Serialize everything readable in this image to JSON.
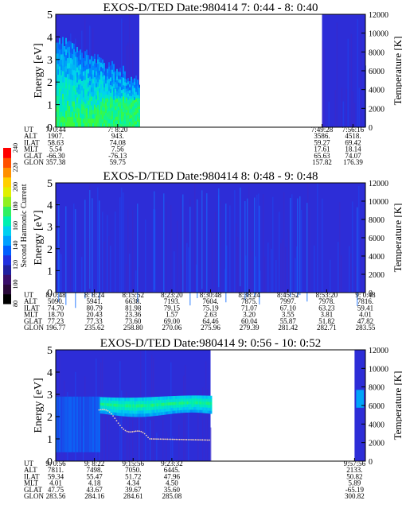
{
  "colorbar": {
    "label": "Second Harmonic Current",
    "ticks": [
      "80",
      "100",
      "120",
      "140",
      "160",
      "180",
      "200",
      "220",
      "240"
    ]
  },
  "chart_data": [
    {
      "type": "heatmap",
      "title": "EXOS-D/TED   Date:980414  7: 0:44 - 8: 0:40",
      "ylabel": "Energy [eV]",
      "y2label": "Temperature [K]",
      "ylim": [
        0,
        5
      ],
      "y2lim": [
        0,
        12000
      ],
      "yticks": [
        "0",
        "1",
        "2",
        "3",
        "4",
        "5"
      ],
      "y2ticks": [
        "0",
        "2000",
        "4000",
        "6000",
        "8000",
        "10000",
        "12000"
      ],
      "coverage": [
        [
          0.0,
          0.27
        ],
        [
          0.86,
          1.0
        ]
      ],
      "temperature_trace": false,
      "table": {
        "row_labels": [
          "UT",
          "ALT",
          "ILAT",
          "MLT",
          "GLAT",
          "GLON"
        ],
        "columns": [
          {
            "pos": 0.0,
            "values": [
              "7: 0:44",
              "1907.",
              "58.63",
              "5.54",
              "-66.30",
              "357.38"
            ]
          },
          {
            "pos": 0.2,
            "values": [
              "7: 8:20",
              "943.",
              "74.08",
              "7.56",
              "-76.13",
              "59.75"
            ]
          },
          {
            "pos": 0.86,
            "values": [
              "7:49:28",
              "3586.",
              "59.27",
              "17.61",
              "65.63",
              "157.82"
            ]
          },
          {
            "pos": 0.96,
            "values": [
              "7:56:16",
              "4518.",
              "69.42",
              "18.14",
              "74.07",
              "176.39"
            ]
          }
        ]
      }
    },
    {
      "type": "heatmap",
      "title": "EXOS-D/TED   Date:980414  8: 0:48 - 9: 0:48",
      "ylabel": "Energy [eV]",
      "y2label": "Temperature [K]",
      "ylim": [
        0,
        5
      ],
      "y2lim": [
        0,
        12000
      ],
      "yticks": [
        "0",
        "1",
        "2",
        "3",
        "4",
        "5"
      ],
      "y2ticks": [
        "0",
        "2000",
        "4000",
        "6000",
        "8000",
        "10000",
        "12000"
      ],
      "coverage": [
        [
          0.0,
          1.0
        ]
      ],
      "temperature_trace": false,
      "table": {
        "row_labels": [
          "UT",
          "ALT",
          "ILAT",
          "MLT",
          "GLAT",
          "GLON"
        ],
        "columns": [
          {
            "pos": 0.0,
            "values": [
              "8: 0:48",
              "5090.",
              "74.70",
              "18.70",
              "77.23",
              "196.77"
            ]
          },
          {
            "pos": 0.125,
            "values": [
              "8: 8:24",
              "5941.",
              "80.79",
              "20.43",
              "77.33",
              "235.62"
            ]
          },
          {
            "pos": 0.25,
            "values": [
              "8:15:52",
              "6638.",
              "81.98",
              "23.36",
              "73.60",
              "258.80"
            ]
          },
          {
            "pos": 0.375,
            "values": [
              "8:23:20",
              "7193.",
              "79.15",
              "1.57",
              "69.00",
              "270.06"
            ]
          },
          {
            "pos": 0.5,
            "values": [
              "8:30:48",
              "7604.",
              "75.19",
              "2.63",
              "64.46",
              "275.96"
            ]
          },
          {
            "pos": 0.625,
            "values": [
              "8:38:24",
              "7875.",
              "71.07",
              "3.20",
              "60.04",
              "279.39"
            ]
          },
          {
            "pos": 0.75,
            "values": [
              "8:45:52",
              "7997.",
              "67.10",
              "3.55",
              "55.87",
              "281.42"
            ]
          },
          {
            "pos": 0.875,
            "values": [
              "8:53:20",
              "7978.",
              "63.23",
              "3.81",
              "51.82",
              "282.71"
            ]
          },
          {
            "pos": 1.0,
            "values": [
              "9: 0:48",
              "7816.",
              "59.41",
              "4.01",
              "47.82",
              "283.55"
            ]
          }
        ]
      }
    },
    {
      "type": "heatmap",
      "title": "EXOS-D/TED   Date:980414  9: 0:56 - 10: 0:52",
      "ylabel": "Energy [eV]",
      "y2label": "Temperature [K]",
      "ylim": [
        0,
        5
      ],
      "y2lim": [
        0,
        12000
      ],
      "yticks": [
        "0",
        "1",
        "2",
        "3",
        "4",
        "5"
      ],
      "y2ticks": [
        "0",
        "2000",
        "4000",
        "6000",
        "8000",
        "10000",
        "12000"
      ],
      "coverage": [
        [
          0.0,
          0.5
        ],
        [
          0.965,
          1.0
        ]
      ],
      "temperature_trace": true,
      "table": {
        "row_labels": [
          "UT",
          "ALT",
          "ILAT",
          "MLT",
          "GLAT",
          "GLON"
        ],
        "columns": [
          {
            "pos": 0.0,
            "values": [
              "9: 0:56",
              "7811.",
              "59.34",
              "4.01",
              "47.75",
              "283.56"
            ]
          },
          {
            "pos": 0.125,
            "values": [
              "9: 8:22",
              "7498.",
              "55.47",
              "4.18",
              "43.67",
              "284.16"
            ]
          },
          {
            "pos": 0.25,
            "values": [
              "9:15:56",
              "7050.",
              "51.72",
              "4.34",
              "39.67",
              "284.61"
            ]
          },
          {
            "pos": 0.375,
            "values": [
              "9:23:32",
              "6445.",
              "47.96",
              "4.50",
              "35.60",
              "285.08"
            ]
          },
          {
            "pos": 0.965,
            "values": [
              "9:57:56",
              "2133.",
              "50.82",
              "5.89",
              "-65.19",
              "300.82"
            ]
          }
        ]
      }
    }
  ]
}
